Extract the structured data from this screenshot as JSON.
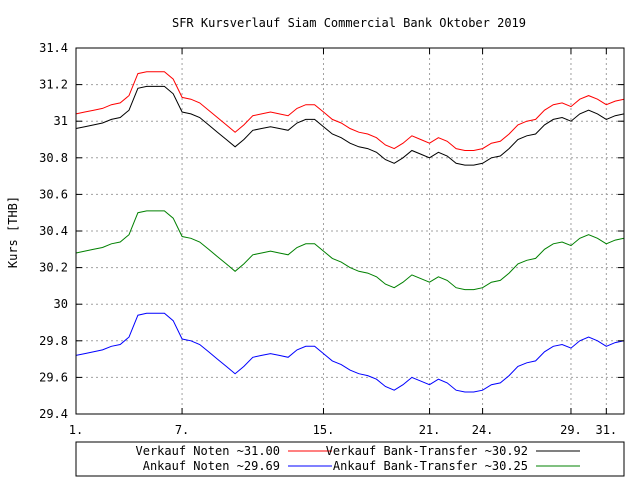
{
  "chart_data": {
    "type": "line",
    "title": "SFR Kursverlauf Siam Commercial Bank Oktober 2019",
    "xlabel": "",
    "ylabel": "Kurs [THB]",
    "xlim": [
      1,
      32
    ],
    "ylim": [
      29.4,
      31.4
    ],
    "x_ticks": [
      {
        "value": 1,
        "label": "1."
      },
      {
        "value": 7,
        "label": "7."
      },
      {
        "value": 15,
        "label": "15."
      },
      {
        "value": 21,
        "label": "21."
      },
      {
        "value": 24,
        "label": "24."
      },
      {
        "value": 29,
        "label": "29."
      },
      {
        "value": 31,
        "label": "31."
      }
    ],
    "y_ticks": [
      {
        "value": 29.4,
        "label": "29.4"
      },
      {
        "value": 29.6,
        "label": "29.6"
      },
      {
        "value": 29.8,
        "label": "29.8"
      },
      {
        "value": 30,
        "label": "30"
      },
      {
        "value": 30.2,
        "label": "30.2"
      },
      {
        "value": 30.4,
        "label": "30.4"
      },
      {
        "value": 30.6,
        "label": "30.6"
      },
      {
        "value": 30.8,
        "label": "30.8"
      },
      {
        "value": 31,
        "label": "31"
      },
      {
        "value": 31.2,
        "label": "31.2"
      },
      {
        "value": 31.4,
        "label": "31.4"
      }
    ],
    "grid": true,
    "legend_position": "bottom",
    "x": [
      1.0,
      1.5,
      2.0,
      2.5,
      3.0,
      3.5,
      4.0,
      4.5,
      5.0,
      5.5,
      6.0,
      6.5,
      7.0,
      7.5,
      8.0,
      8.5,
      9.0,
      9.5,
      10.0,
      10.5,
      11.0,
      11.5,
      12.0,
      12.5,
      13.0,
      13.5,
      14.0,
      14.5,
      15.0,
      15.5,
      16.0,
      16.5,
      17.0,
      17.5,
      18.0,
      18.5,
      19.0,
      19.5,
      20.0,
      20.5,
      21.0,
      21.5,
      22.0,
      22.5,
      23.0,
      23.5,
      24.0,
      24.5,
      25.0,
      25.5,
      26.0,
      26.5,
      27.0,
      27.5,
      28.0,
      28.5,
      29.0,
      29.5,
      30.0,
      30.5,
      31.0,
      31.5,
      32.0
    ],
    "series": [
      {
        "name": "Verkauf Noten ~31.00",
        "color": "#ff0000",
        "values": [
          31.04,
          31.05,
          31.06,
          31.07,
          31.09,
          31.1,
          31.14,
          31.26,
          31.27,
          31.27,
          31.27,
          31.23,
          31.13,
          31.12,
          31.1,
          31.06,
          31.02,
          30.98,
          30.94,
          30.98,
          31.03,
          31.04,
          31.05,
          31.04,
          31.03,
          31.07,
          31.09,
          31.09,
          31.05,
          31.01,
          30.99,
          30.96,
          30.94,
          30.93,
          30.91,
          30.87,
          30.85,
          30.88,
          30.92,
          30.9,
          30.88,
          30.91,
          30.89,
          30.85,
          30.84,
          30.84,
          30.85,
          30.88,
          30.89,
          30.93,
          30.98,
          31.0,
          31.01,
          31.06,
          31.09,
          31.1,
          31.08,
          31.12,
          31.14,
          31.12,
          31.09,
          31.11,
          31.12
        ]
      },
      {
        "name": "Ankauf Noten ~29.69",
        "color": "#0000ff",
        "values": [
          29.72,
          29.73,
          29.74,
          29.75,
          29.77,
          29.78,
          29.82,
          29.94,
          29.95,
          29.95,
          29.95,
          29.91,
          29.81,
          29.8,
          29.78,
          29.74,
          29.7,
          29.66,
          29.62,
          29.66,
          29.71,
          29.72,
          29.73,
          29.72,
          29.71,
          29.75,
          29.77,
          29.77,
          29.73,
          29.69,
          29.67,
          29.64,
          29.62,
          29.61,
          29.59,
          29.55,
          29.53,
          29.56,
          29.6,
          29.58,
          29.56,
          29.59,
          29.57,
          29.53,
          29.52,
          29.52,
          29.53,
          29.56,
          29.57,
          29.61,
          29.66,
          29.68,
          29.69,
          29.74,
          29.77,
          29.78,
          29.76,
          29.8,
          29.82,
          29.8,
          29.77,
          29.79,
          29.8
        ]
      },
      {
        "name": "Verkauf Bank-Transfer ~30.92",
        "color": "#000000",
        "values": [
          30.96,
          30.97,
          30.98,
          30.99,
          31.01,
          31.02,
          31.06,
          31.18,
          31.19,
          31.19,
          31.19,
          31.15,
          31.05,
          31.04,
          31.02,
          30.98,
          30.94,
          30.9,
          30.86,
          30.9,
          30.95,
          30.96,
          30.97,
          30.96,
          30.95,
          30.99,
          31.01,
          31.01,
          30.97,
          30.93,
          30.91,
          30.88,
          30.86,
          30.85,
          30.83,
          30.79,
          30.77,
          30.8,
          30.84,
          30.82,
          30.8,
          30.83,
          30.81,
          30.77,
          30.76,
          30.76,
          30.77,
          30.8,
          30.81,
          30.85,
          30.9,
          30.92,
          30.93,
          30.98,
          31.01,
          31.02,
          31.0,
          31.04,
          31.06,
          31.04,
          31.01,
          31.03,
          31.04
        ]
      },
      {
        "name": "Ankauf Bank-Transfer ~30.25",
        "color": "#008000",
        "values": [
          30.28,
          30.29,
          30.3,
          30.31,
          30.33,
          30.34,
          30.38,
          30.5,
          30.51,
          30.51,
          30.51,
          30.47,
          30.37,
          30.36,
          30.34,
          30.3,
          30.26,
          30.22,
          30.18,
          30.22,
          30.27,
          30.28,
          30.29,
          30.28,
          30.27,
          30.31,
          30.33,
          30.33,
          30.29,
          30.25,
          30.23,
          30.2,
          30.18,
          30.17,
          30.15,
          30.11,
          30.09,
          30.12,
          30.16,
          30.14,
          30.12,
          30.15,
          30.13,
          30.09,
          30.08,
          30.08,
          30.09,
          30.12,
          30.13,
          30.17,
          30.22,
          30.24,
          30.25,
          30.3,
          30.33,
          30.34,
          30.32,
          30.36,
          30.38,
          30.36,
          30.33,
          30.35,
          30.36
        ]
      }
    ]
  }
}
